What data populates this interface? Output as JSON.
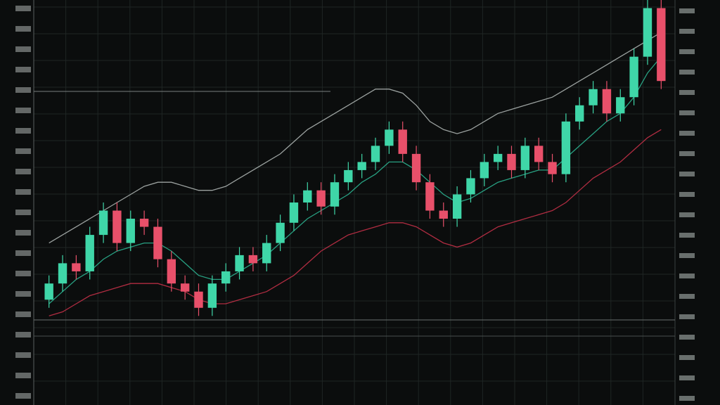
{
  "chart_data": {
    "type": "candlestick",
    "up_color": "#3fd6a8",
    "down_color": "#e8506a",
    "ylim": [
      0,
      100
    ],
    "open": [
      26,
      30,
      35,
      33,
      42,
      48,
      40,
      46,
      44,
      36,
      30,
      28,
      24,
      30,
      33,
      37,
      35,
      40,
      45,
      50,
      53,
      49,
      55,
      58,
      60,
      64,
      68,
      62,
      55,
      48,
      46,
      52,
      56,
      60,
      62,
      58,
      64,
      60,
      57,
      70,
      74,
      78,
      72,
      76,
      86,
      98
    ],
    "high": [
      32,
      37,
      37,
      44,
      50,
      50,
      48,
      48,
      46,
      38,
      32,
      30,
      32,
      35,
      39,
      39,
      42,
      47,
      52,
      55,
      55,
      57,
      60,
      62,
      66,
      70,
      70,
      64,
      57,
      50,
      54,
      58,
      62,
      64,
      64,
      66,
      66,
      62,
      72,
      76,
      80,
      80,
      78,
      88,
      100,
      100
    ],
    "low": [
      24,
      28,
      31,
      31,
      40,
      38,
      38,
      42,
      34,
      28,
      26,
      22,
      22,
      28,
      31,
      33,
      33,
      38,
      43,
      48,
      47,
      47,
      53,
      56,
      58,
      62,
      60,
      53,
      46,
      44,
      44,
      50,
      54,
      58,
      56,
      56,
      58,
      55,
      55,
      68,
      72,
      70,
      70,
      74,
      84,
      78
    ],
    "close": [
      30,
      35,
      33,
      42,
      48,
      40,
      46,
      44,
      36,
      30,
      28,
      24,
      30,
      33,
      37,
      35,
      40,
      45,
      50,
      53,
      49,
      55,
      58,
      60,
      64,
      68,
      62,
      55,
      48,
      46,
      52,
      56,
      60,
      62,
      58,
      64,
      60,
      57,
      70,
      74,
      78,
      72,
      76,
      86,
      98,
      80
    ],
    "series": [
      {
        "color": "#d9344f",
        "values": [
          22,
          23,
          25,
          27,
          28,
          29,
          30,
          30,
          30,
          29,
          28,
          26,
          25,
          25,
          26,
          27,
          28,
          30,
          32,
          35,
          38,
          40,
          42,
          43,
          44,
          45,
          45,
          44,
          42,
          40,
          39,
          40,
          42,
          44,
          45,
          46,
          47,
          48,
          50,
          53,
          56,
          58,
          60,
          63,
          66,
          68
        ]
      },
      {
        "color": "#2fc7a0",
        "values": [
          25,
          28,
          31,
          33,
          36,
          38,
          39,
          40,
          40,
          38,
          35,
          32,
          31,
          31,
          33,
          35,
          37,
          40,
          43,
          46,
          48,
          50,
          52,
          55,
          57,
          60,
          60,
          58,
          55,
          52,
          50,
          51,
          53,
          55,
          56,
          57,
          58,
          58,
          61,
          64,
          67,
          70,
          72,
          76,
          82,
          86
        ]
      },
      {
        "color": "#bfc7c4",
        "values": [
          40,
          42,
          44,
          46,
          48,
          50,
          52,
          54,
          55,
          55,
          54,
          53,
          53,
          54,
          56,
          58,
          60,
          62,
          65,
          68,
          70,
          72,
          74,
          76,
          78,
          78,
          77,
          74,
          70,
          68,
          67,
          68,
          70,
          72,
          73,
          74,
          75,
          76,
          78,
          80,
          82,
          84,
          86,
          88,
          90,
          92
        ]
      }
    ]
  }
}
